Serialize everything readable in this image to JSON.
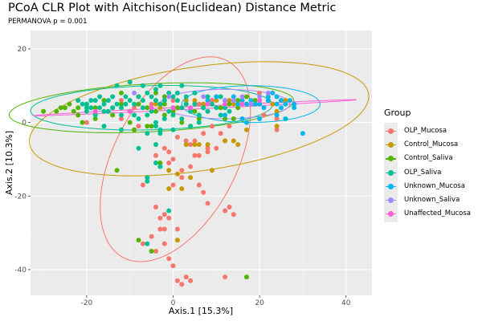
{
  "chart_data": {
    "type": "scatter",
    "title": "PCoA CLR Plot with Aitchison(Euclidean) Distance Metric",
    "subtitle": "PERMANOVA p = 0.001",
    "xlabel": "Axis.1   [15.3%]",
    "ylabel": "Axis.2   [10.3%]",
    "xlim": [
      -33,
      46
    ],
    "ylim": [
      -47,
      25
    ],
    "x_ticks": [
      -20,
      0,
      20,
      40
    ],
    "y_ticks": [
      20,
      0,
      -20,
      -40
    ],
    "x_tick_labels": [
      "-20",
      "0",
      "20",
      "40"
    ],
    "y_tick_labels": [
      "20",
      "0",
      "-20",
      "-40"
    ],
    "grid": true,
    "legend": {
      "title": "Group",
      "position": "right",
      "entries": [
        "OLP_Mucosa",
        "Control_Mucosa",
        "Control_Saliva",
        "OLP_Saliva",
        "Unknown_Mucosa",
        "Unknown_Saliva",
        "Unaffected_Mucosa"
      ]
    },
    "series": [
      {
        "name": "OLP_Mucosa",
        "color": "#F8766D",
        "ellipse": {
          "cx": 0.5,
          "cy": -10,
          "rx": 33,
          "ry": 13,
          "angle_deg": 72
        },
        "points": [
          [
            -12,
            6
          ],
          [
            -9,
            4
          ],
          [
            -5,
            5
          ],
          [
            -3,
            5
          ],
          [
            0,
            6
          ],
          [
            3,
            5
          ],
          [
            6,
            5
          ],
          [
            9,
            6
          ],
          [
            12,
            5
          ],
          [
            15,
            5
          ],
          [
            18,
            6
          ],
          [
            20,
            8
          ],
          [
            22,
            6
          ],
          [
            21,
            2
          ],
          [
            24,
            1
          ],
          [
            24,
            -2
          ],
          [
            8,
            -7
          ],
          [
            -8,
            -1
          ],
          [
            -12,
            1
          ],
          [
            -20,
            0
          ],
          [
            -9,
            -2
          ],
          [
            1,
            -4
          ],
          [
            3,
            -5
          ],
          [
            5,
            -5
          ],
          [
            4,
            -6
          ],
          [
            7,
            -3
          ],
          [
            9,
            -1
          ],
          [
            11,
            -3
          ],
          [
            13,
            -1
          ],
          [
            12,
            -5
          ],
          [
            10,
            -7
          ],
          [
            8,
            -8
          ],
          [
            -1,
            -8
          ],
          [
            -2,
            -7
          ],
          [
            -4,
            -9
          ],
          [
            -1,
            -11
          ],
          [
            0,
            -10
          ],
          [
            4,
            -12
          ],
          [
            2,
            -13
          ],
          [
            5,
            -9
          ],
          [
            6,
            -9
          ],
          [
            2,
            -15
          ],
          [
            -6,
            -15
          ],
          [
            -7,
            -17
          ],
          [
            0,
            -17
          ],
          [
            6,
            -17
          ],
          [
            7,
            -19
          ],
          [
            8,
            -22
          ],
          [
            12,
            -24
          ],
          [
            14,
            -25
          ],
          [
            13,
            -23
          ],
          [
            -4,
            -23
          ],
          [
            -3,
            -26
          ],
          [
            -2,
            -25
          ],
          [
            -1,
            -26
          ],
          [
            -3,
            -29
          ],
          [
            -2,
            -29
          ],
          [
            1,
            -29
          ],
          [
            -5,
            -31
          ],
          [
            -2,
            -33
          ],
          [
            -4,
            -35
          ],
          [
            0,
            -39
          ],
          [
            1,
            -43
          ],
          [
            2,
            -44
          ],
          [
            4,
            -43
          ],
          [
            12,
            -42
          ],
          [
            3,
            -42
          ],
          [
            -7,
            -33
          ],
          [
            -1,
            -37
          ]
        ]
      },
      {
        "name": "Control_Mucosa",
        "color": "#C49A00",
        "ellipse": {
          "cx": 6,
          "cy": 1,
          "rx": 40,
          "ry": 14,
          "angle_deg": 12
        },
        "points": [
          [
            -4,
            5
          ],
          [
            -3,
            4
          ],
          [
            -2,
            6
          ],
          [
            0,
            4
          ],
          [
            3,
            6
          ],
          [
            5,
            6
          ],
          [
            7,
            5
          ],
          [
            8,
            6
          ],
          [
            10,
            6
          ],
          [
            13,
            6
          ],
          [
            14,
            5
          ],
          [
            16,
            6
          ],
          [
            18,
            5
          ],
          [
            20,
            6
          ],
          [
            22,
            6
          ],
          [
            23,
            5
          ],
          [
            25,
            6
          ],
          [
            26,
            6
          ],
          [
            24,
            3
          ],
          [
            26,
            1
          ],
          [
            24,
            -1
          ],
          [
            4,
            -1
          ],
          [
            3,
            -6
          ],
          [
            5,
            -6
          ],
          [
            6,
            -6
          ],
          [
            -1,
            -13
          ],
          [
            1,
            -14
          ],
          [
            12,
            -5
          ],
          [
            14,
            -5
          ],
          [
            15,
            -6
          ],
          [
            17,
            -2
          ],
          [
            -1,
            -18
          ],
          [
            2,
            -18
          ],
          [
            1,
            -32
          ],
          [
            8,
            -6
          ],
          [
            4,
            -15
          ],
          [
            9,
            -13
          ]
        ]
      },
      {
        "name": "Control_Saliva",
        "color": "#53B400",
        "ellipse": {
          "cx": -5,
          "cy": 4,
          "rx": 33,
          "ry": 6.5,
          "angle_deg": 4
        },
        "points": [
          [
            -30,
            3
          ],
          [
            -27,
            3
          ],
          [
            -26,
            4
          ],
          [
            -24,
            5
          ],
          [
            -23,
            3
          ],
          [
            -22,
            4
          ],
          [
            -20,
            5
          ],
          [
            -18,
            4
          ],
          [
            -16,
            6
          ],
          [
            -14,
            4
          ],
          [
            -12,
            5
          ],
          [
            -10,
            3
          ],
          [
            -8,
            5
          ],
          [
            -6,
            4
          ],
          [
            -4,
            3
          ],
          [
            -2,
            5
          ],
          [
            0,
            3
          ],
          [
            1,
            4
          ],
          [
            3,
            5
          ],
          [
            5,
            3
          ],
          [
            7,
            4
          ],
          [
            9,
            5
          ],
          [
            11,
            4
          ],
          [
            13,
            5
          ],
          [
            15,
            4
          ],
          [
            17,
            5
          ],
          [
            19,
            5
          ],
          [
            -22,
            2
          ],
          [
            -18,
            1
          ],
          [
            -14,
            2
          ],
          [
            -10,
            0
          ],
          [
            -6,
            -1
          ],
          [
            -2,
            2
          ],
          [
            2,
            0
          ],
          [
            6,
            1
          ],
          [
            -9,
            -2
          ],
          [
            -12,
            8
          ],
          [
            -8,
            7
          ],
          [
            -4,
            8
          ],
          [
            -2,
            7
          ],
          [
            15,
            6
          ],
          [
            17,
            7
          ],
          [
            19,
            6
          ],
          [
            -5,
            -1
          ],
          [
            -13,
            -13
          ],
          [
            -8,
            -32
          ],
          [
            -5,
            -35
          ],
          [
            17,
            -42
          ],
          [
            12,
            1
          ],
          [
            14,
            1
          ],
          [
            -3,
            -11
          ],
          [
            -21,
            0
          ],
          [
            -25,
            4
          ]
        ]
      },
      {
        "name": "OLP_Saliva",
        "color": "#00C094",
        "ellipse": {
          "cx": -5,
          "cy": 4,
          "rx": 28,
          "ry": 6,
          "angle_deg": 2
        },
        "points": [
          [
            -22,
            6
          ],
          [
            -21,
            5
          ],
          [
            -20,
            5
          ],
          [
            -19,
            4
          ],
          [
            -18,
            6
          ],
          [
            -17,
            7
          ],
          [
            -16,
            5
          ],
          [
            -15,
            6
          ],
          [
            -14,
            7
          ],
          [
            -13,
            5
          ],
          [
            -12,
            4
          ],
          [
            -11,
            7
          ],
          [
            -10,
            6
          ],
          [
            -9,
            5
          ],
          [
            -8,
            7
          ],
          [
            -7,
            4
          ],
          [
            -6,
            8
          ],
          [
            -5,
            7
          ],
          [
            -4,
            6
          ],
          [
            -3,
            5
          ],
          [
            -2,
            6
          ],
          [
            -1,
            8
          ],
          [
            0,
            7
          ],
          [
            1,
            6
          ],
          [
            2,
            4
          ],
          [
            3,
            5
          ],
          [
            4,
            3
          ],
          [
            5,
            5
          ],
          [
            6,
            2
          ],
          [
            7,
            4
          ],
          [
            8,
            3
          ],
          [
            9,
            5
          ],
          [
            10,
            4
          ],
          [
            11,
            2
          ],
          [
            12,
            4
          ],
          [
            13,
            3
          ],
          [
            -20,
            4
          ],
          [
            -18,
            2
          ],
          [
            -16,
            3
          ],
          [
            -14,
            4
          ],
          [
            -12,
            2
          ],
          [
            -10,
            3
          ],
          [
            -8,
            1
          ],
          [
            -6,
            2
          ],
          [
            -4,
            0
          ],
          [
            -2,
            1
          ],
          [
            0,
            2
          ],
          [
            2,
            1
          ],
          [
            4,
            -1
          ],
          [
            6,
            0
          ],
          [
            -13,
            10
          ],
          [
            -10,
            11
          ],
          [
            -7,
            10
          ],
          [
            -4,
            9
          ],
          [
            -3,
            10
          ],
          [
            -16,
            -1
          ],
          [
            -12,
            -2
          ],
          [
            -6,
            -3
          ],
          [
            -3,
            -2
          ],
          [
            0,
            -2
          ],
          [
            -3,
            -12
          ],
          [
            -4,
            -11
          ],
          [
            -4,
            -1
          ],
          [
            -3,
            -3
          ],
          [
            -6,
            -15
          ],
          [
            -6,
            -16
          ],
          [
            -4,
            -6
          ],
          [
            -8,
            -7
          ],
          [
            -1,
            -24
          ],
          [
            -6,
            -33
          ],
          [
            2,
            10
          ],
          [
            -20,
            3
          ],
          [
            -19,
            6
          ],
          [
            -17,
            4
          ],
          [
            -15,
            3
          ],
          [
            -11,
            5
          ],
          [
            -9,
            2
          ],
          [
            -7,
            6
          ],
          [
            -5,
            3
          ],
          [
            -1,
            3
          ],
          [
            1,
            8
          ],
          [
            3,
            7
          ],
          [
            5,
            8
          ],
          [
            8,
            7
          ],
          [
            11,
            7
          ],
          [
            14,
            6
          ]
        ]
      },
      {
        "name": "Unknown_Mucosa",
        "color": "#00B6EB",
        "ellipse": {
          "cx": 18,
          "cy": 5,
          "rx": 16,
          "ry": 5,
          "angle_deg": 0
        },
        "points": [
          [
            8,
            6
          ],
          [
            10,
            7
          ],
          [
            12,
            6
          ],
          [
            14,
            7
          ],
          [
            15,
            5
          ],
          [
            16,
            6
          ],
          [
            17,
            5
          ],
          [
            18,
            6
          ],
          [
            19,
            5
          ],
          [
            20,
            5
          ],
          [
            22,
            6
          ],
          [
            23,
            8
          ],
          [
            24,
            7
          ],
          [
            24,
            5
          ],
          [
            25,
            6
          ],
          [
            25,
            4
          ],
          [
            26,
            5
          ],
          [
            27,
            6
          ],
          [
            28,
            5
          ],
          [
            28,
            4
          ],
          [
            12,
            2
          ],
          [
            16,
            1
          ],
          [
            17,
            0
          ],
          [
            20,
            1
          ],
          [
            26,
            1
          ],
          [
            30,
            -3
          ],
          [
            22,
            7
          ],
          [
            21,
            4
          ],
          [
            24,
            2
          ]
        ]
      },
      {
        "name": "Unknown_Saliva",
        "color": "#A58AFF",
        "ellipse": {
          "cx": 12,
          "cy": 5,
          "rx": 15,
          "ry": 4,
          "angle_deg": 0
        },
        "points": [
          [
            -9,
            8
          ],
          [
            -1,
            7
          ],
          [
            7,
            7
          ],
          [
            12,
            6
          ],
          [
            14,
            6
          ],
          [
            16,
            7
          ],
          [
            18,
            5
          ],
          [
            20,
            7
          ],
          [
            22,
            8
          ]
        ]
      },
      {
        "name": "Unaffected_Mucosa",
        "color": "#FB61D7",
        "ellipse": {
          "cx": 5,
          "cy": 4,
          "rx": 37.5,
          "ry": 0.35,
          "angle_deg": 3.8
        },
        "points": [
          [
            -18,
            3
          ],
          [
            -10,
            3
          ],
          [
            -5,
            4
          ],
          [
            0,
            4
          ],
          [
            4,
            4
          ],
          [
            8,
            5
          ],
          [
            12,
            5
          ],
          [
            16,
            5
          ],
          [
            20,
            6
          ]
        ]
      }
    ]
  }
}
